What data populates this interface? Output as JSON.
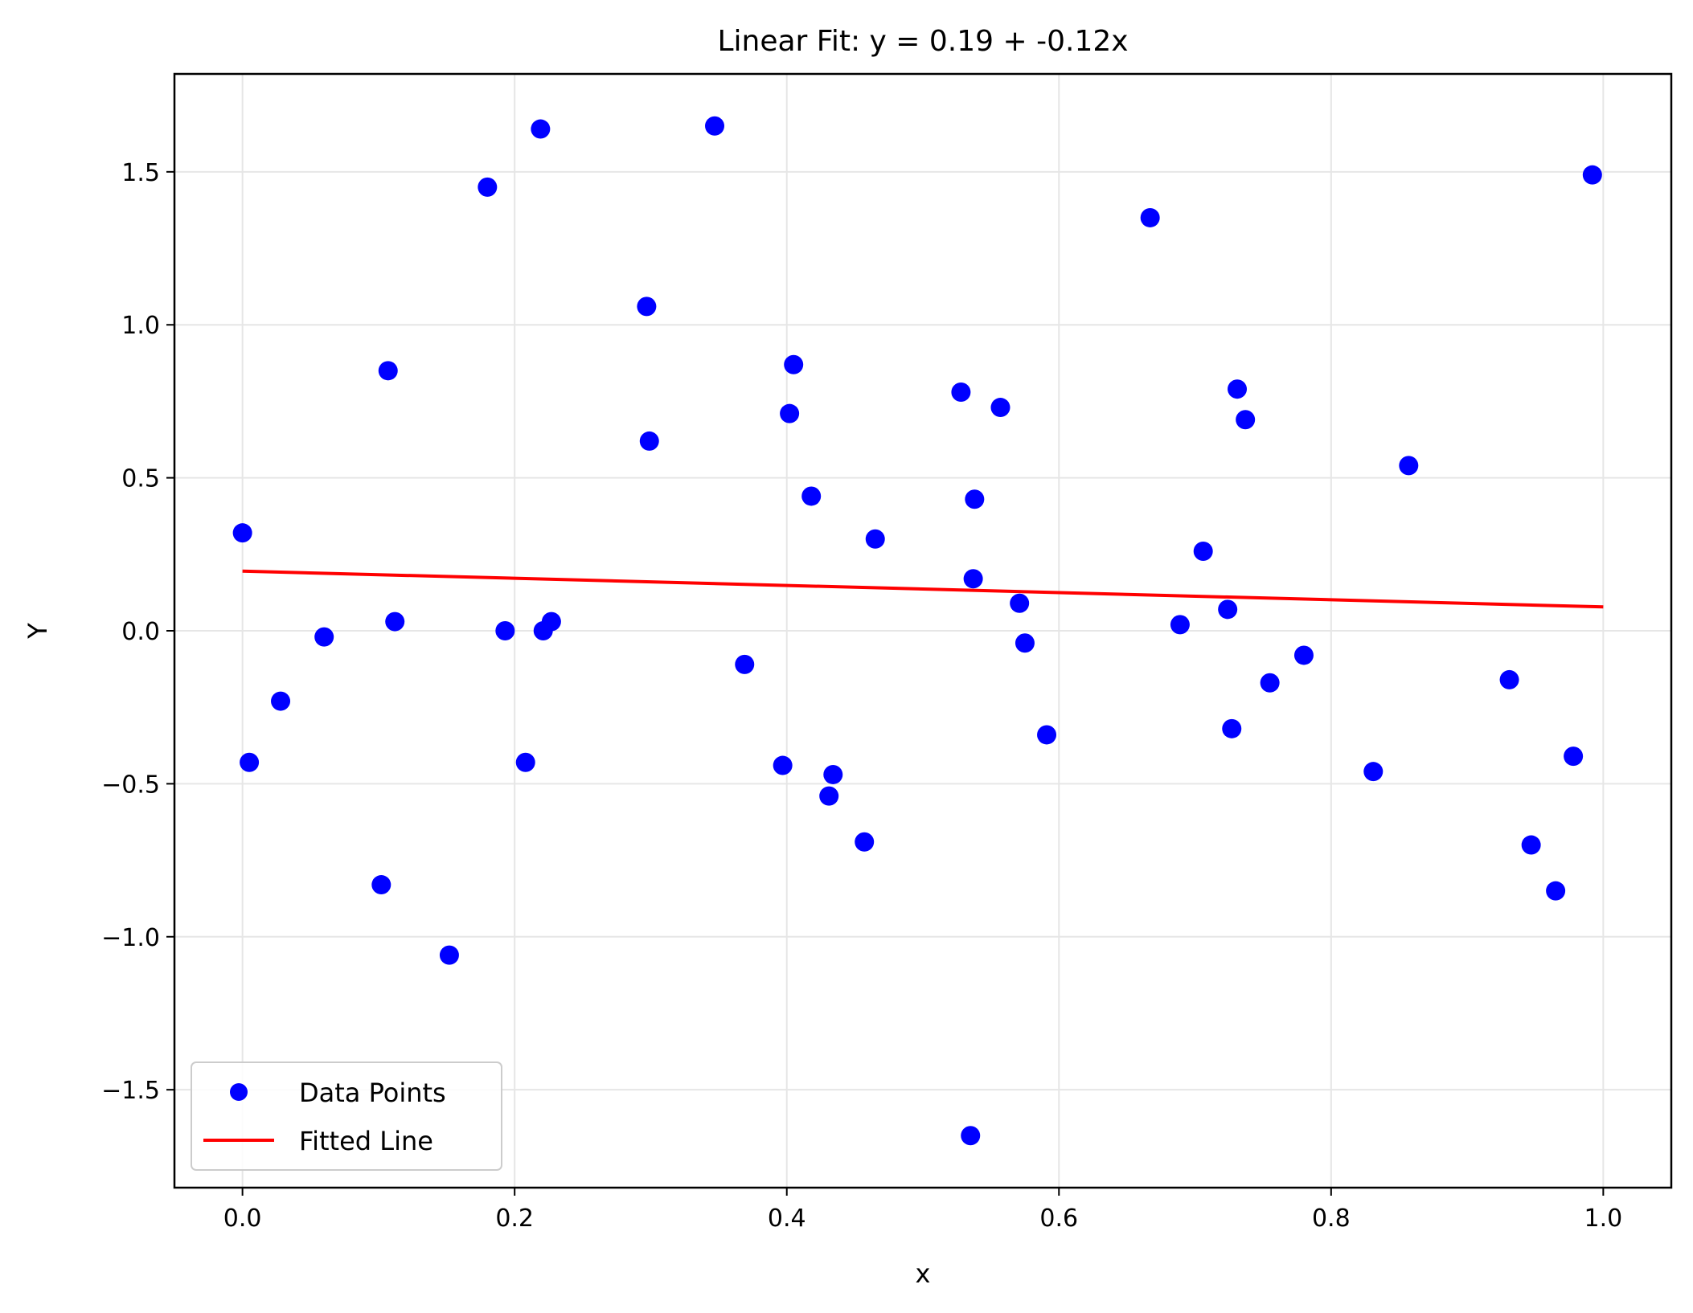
{
  "chart_data": {
    "type": "scatter",
    "title": "Linear Fit: y = 0.19 + -0.12x",
    "xlabel": "x",
    "ylabel": "Y",
    "xlim": [
      -0.05,
      1.05
    ],
    "ylim": [
      -1.82,
      1.82
    ],
    "x_ticks": [
      0.0,
      0.2,
      0.4,
      0.6,
      0.8,
      1.0
    ],
    "x_tick_labels": [
      "0.0",
      "0.2",
      "0.4",
      "0.6",
      "0.8",
      "1.0"
    ],
    "y_ticks": [
      -1.5,
      -1.0,
      -0.5,
      0.0,
      0.5,
      1.0,
      1.5
    ],
    "y_tick_labels": [
      "−1.5",
      "−1.0",
      "−0.5",
      "0.0",
      "0.5",
      "1.0",
      "1.5"
    ],
    "grid": true,
    "legend_position": "bottom-left",
    "series": [
      {
        "name": "Data Points",
        "kind": "scatter",
        "color": "#0000ff",
        "points": [
          [
            0.0,
            0.32
          ],
          [
            0.005,
            -0.43
          ],
          [
            0.028,
            -0.23
          ],
          [
            0.06,
            -0.02
          ],
          [
            0.102,
            -0.83
          ],
          [
            0.107,
            0.85
          ],
          [
            0.112,
            0.03
          ],
          [
            0.152,
            -1.06
          ],
          [
            0.18,
            1.45
          ],
          [
            0.193,
            0.0
          ],
          [
            0.208,
            -0.43
          ],
          [
            0.219,
            1.64
          ],
          [
            0.221,
            0.0
          ],
          [
            0.227,
            0.03
          ],
          [
            0.297,
            1.06
          ],
          [
            0.299,
            0.62
          ],
          [
            0.347,
            1.65
          ],
          [
            0.369,
            -0.11
          ],
          [
            0.397,
            -0.44
          ],
          [
            0.402,
            0.71
          ],
          [
            0.405,
            0.87
          ],
          [
            0.418,
            0.44
          ],
          [
            0.431,
            -0.54
          ],
          [
            0.434,
            -0.47
          ],
          [
            0.457,
            -0.69
          ],
          [
            0.465,
            0.3
          ],
          [
            0.528,
            0.78
          ],
          [
            0.535,
            -1.65
          ],
          [
            0.537,
            0.17
          ],
          [
            0.538,
            0.43
          ],
          [
            0.557,
            0.73
          ],
          [
            0.571,
            0.09
          ],
          [
            0.575,
            -0.04
          ],
          [
            0.591,
            -0.34
          ],
          [
            0.667,
            1.35
          ],
          [
            0.689,
            0.02
          ],
          [
            0.706,
            0.26
          ],
          [
            0.724,
            0.07
          ],
          [
            0.727,
            -0.32
          ],
          [
            0.731,
            0.79
          ],
          [
            0.737,
            0.69
          ],
          [
            0.755,
            -0.17
          ],
          [
            0.78,
            -0.08
          ],
          [
            0.831,
            -0.46
          ],
          [
            0.857,
            0.54
          ],
          [
            0.931,
            -0.16
          ],
          [
            0.947,
            -0.7
          ],
          [
            0.965,
            -0.85
          ],
          [
            0.978,
            -0.41
          ],
          [
            0.992,
            1.49
          ]
        ]
      },
      {
        "name": "Fitted Line",
        "kind": "line",
        "color": "#ff0000",
        "points": [
          [
            0.0,
            0.195
          ],
          [
            1.0,
            0.078
          ]
        ]
      }
    ]
  }
}
